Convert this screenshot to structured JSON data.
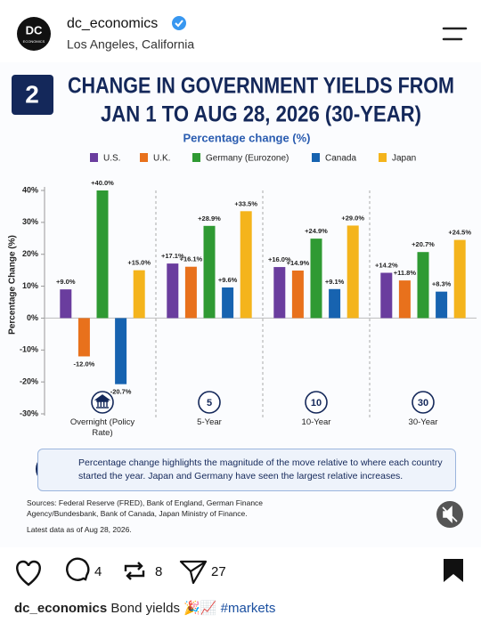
{
  "post": {
    "username": "dc_economics",
    "location": "Los Angeles, California",
    "avatar": "DC",
    "avatar_sub": "ECONOMICS",
    "comments": "4",
    "reposts": "8",
    "shares": "27",
    "caption_user": "dc_economics",
    "caption": "Bond yields 🎉📈",
    "hashtag": "#markets"
  },
  "chart_data": {
    "type": "bar",
    "badge": "2",
    "title": [
      "CHANGE IN GOVERNMENT YIELDS FROM",
      "JAN 1 TO AUG 28, 2026 (30-YEAR)"
    ],
    "subtitle": "Percentage change (%)",
    "ylabel": "Percentage Change (%)",
    "categories": [
      "Overnight (Policy Rate)",
      "5-Year",
      "10-Year",
      "30-Year"
    ],
    "category_badges": [
      null,
      "5",
      "10",
      "30"
    ],
    "series": [
      {
        "name": "U.S.",
        "color": "#6a3d9e",
        "values": [
          9.0,
          17.1,
          16.0,
          14.2
        ],
        "value_labels": [
          "+9.0%",
          "+17.1%",
          "+16.0%",
          "+14.2%"
        ]
      },
      {
        "name": "U.K.",
        "color": "#e8711c",
        "values": [
          -12.0,
          16.1,
          14.9,
          11.8
        ],
        "value_labels": [
          "-12.0%",
          "+16.1%",
          "+14.9%",
          "+11.8%"
        ]
      },
      {
        "name": "Germany (Eurozone)",
        "color": "#2f9a33",
        "values": [
          40.0,
          28.9,
          24.9,
          20.7
        ],
        "value_labels": [
          "+40.0%",
          "+28.9%",
          "+24.9%",
          "+20.7%"
        ]
      },
      {
        "name": "Canada",
        "color": "#1763b0",
        "values": [
          -20.7,
          9.6,
          9.1,
          8.3
        ],
        "value_labels": [
          "-20.7%",
          "+9.6%",
          "+9.1%",
          "+8.3%"
        ]
      },
      {
        "name": "Japan",
        "color": "#f4b41c",
        "values": [
          15.0,
          33.5,
          29.0,
          24.5
        ],
        "value_labels": [
          "+15.0%",
          "+33.5%",
          "+29.0%",
          "+24.5%"
        ]
      }
    ],
    "ylim": [
      -30,
      40
    ],
    "yticks": [
      {
        "value": -30,
        "label": "-30%"
      },
      {
        "value": -20,
        "label": "-20%"
      },
      {
        "value": -10,
        "label": "-10%"
      },
      {
        "value": 0,
        "label": "0%"
      },
      {
        "value": 10,
        "label": "10%"
      },
      {
        "value": 20,
        "label": "20%"
      },
      {
        "value": 30,
        "label": "30%"
      },
      {
        "value": 40,
        "label": "40%"
      }
    ],
    "note_icon": "%",
    "note": "Percentage change highlights the magnitude of the move relative to where each country started the year. Japan and Germany have seen the largest relative increases.",
    "sources": "Sources: Federal Reserve (FRED), Bank of England, German Finance Agency/Bundesbank, Bank of Canada, Japan Ministry of Finance.",
    "data_date": "Latest data as of Aug 28, 2026."
  }
}
